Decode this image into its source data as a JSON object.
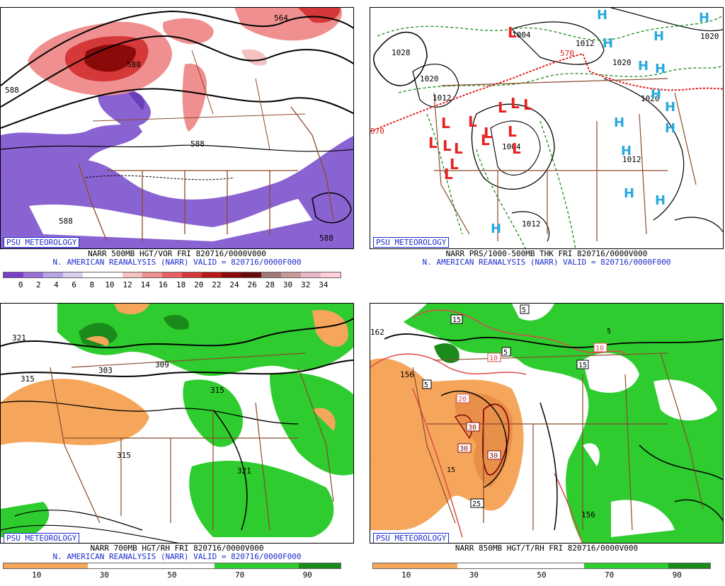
{
  "panels": [
    {
      "id": "vor500",
      "badge": "PSU METEOROLOGY",
      "title_line1": "NARR 500MB HGT/VOR FRI 820716/0000V000",
      "title_line2": "N. AMERICAN REANALYSIS (NARR) VALID = 820716/0000F000",
      "colorbar": {
        "colors": [
          "#7a3fc7",
          "#9a6fd8",
          "#b7a3e6",
          "#d9d0f0",
          "#ffffff",
          "#ffffff",
          "#f5c2c2",
          "#f08f8f",
          "#e86060",
          "#d43838",
          "#b81818",
          "#8a0a0a",
          "#6a0a0a",
          "#a07878",
          "#c89a9a",
          "#e8b8c8",
          "#ffd0dc"
        ],
        "labels": [
          "0",
          "2",
          "4",
          "6",
          "8",
          "10",
          "12",
          "14",
          "16",
          "18",
          "20",
          "22",
          "24",
          "26",
          "28",
          "30",
          "32",
          "34"
        ]
      },
      "contour_labels": [
        "588",
        "588",
        "588",
        "588",
        "588",
        "564"
      ]
    },
    {
      "id": "thk",
      "badge": "PSU METEOROLOGY",
      "title_line1": "NARR PRS/1000-500MB THK FRI 820716/0000V000",
      "title_line2": "N. AMERICAN REANALYSIS (NARR) VALID = 820716/0000F000",
      "contour_labels": [
        "1028",
        "1020",
        "1012",
        "1004",
        "1012",
        "1020",
        "1020",
        "1020",
        "1012",
        "1004",
        "1012",
        "570",
        "570"
      ],
      "lows": [
        "L",
        "L",
        "L",
        "L",
        "L",
        "L",
        "L",
        "L",
        "L",
        "L",
        "L",
        "L",
        "L",
        "L",
        "L"
      ],
      "highs": [
        "H",
        "H",
        "H",
        "H",
        "H",
        "H",
        "H",
        "H",
        "H",
        "H",
        "H",
        "H",
        "H",
        "H"
      ]
    },
    {
      "id": "rh700",
      "badge": "PSU METEOROLOGY",
      "title_line1": "NARR 700MB HGT/RH FRI 820716/0000V000",
      "title_line2": "N. AMERICAN REANALYSIS (NARR) VALID = 820716/0000F000",
      "colorbar": {
        "colors": [
          "#f5a65b",
          "#f5a65b",
          "#ffffff",
          "#ffffff",
          "#ffffff",
          "#2ecc2e",
          "#2ecc2e",
          "#1a8a1a"
        ],
        "labels": [
          "10",
          "30",
          "50",
          "70",
          "90"
        ]
      },
      "contour_labels": [
        "321",
        "315",
        "303",
        "309",
        "315",
        "315",
        "321"
      ]
    },
    {
      "id": "t850",
      "badge": "PSU METEOROLOGY",
      "title_line1": "NARR 850MB HGT/T/RH FRI 820716/0000V000",
      "colorbar": {
        "colors": [
          "#f5a65b",
          "#f5a65b",
          "#ffffff",
          "#ffffff",
          "#ffffff",
          "#2ecc2e",
          "#2ecc2e",
          "#1a8a1a"
        ],
        "labels": [
          "10",
          "30",
          "50",
          "70",
          "90"
        ]
      },
      "contour_labels": [
        "162",
        "156",
        "5",
        "15",
        "10",
        "20",
        "30",
        "30",
        "30",
        "5",
        "15",
        "5",
        "10",
        "25",
        "156",
        "5",
        "15"
      ]
    }
  ]
}
